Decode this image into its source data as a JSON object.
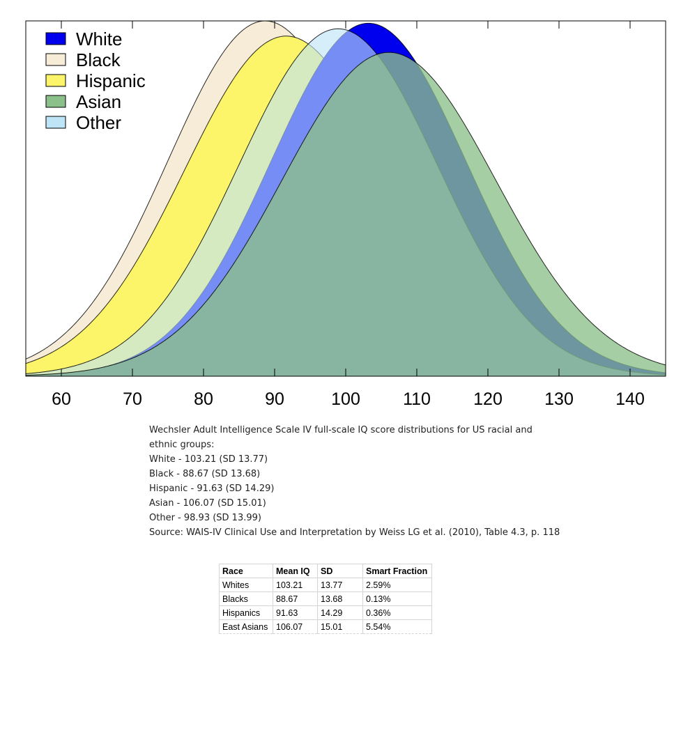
{
  "chart_data": {
    "type": "area",
    "title": "",
    "xlabel": "",
    "ylabel": "",
    "xlim": [
      55,
      145
    ],
    "xticks": [
      60,
      70,
      80,
      90,
      100,
      110,
      120,
      130,
      140
    ],
    "legend_position": "top-left",
    "series": [
      {
        "name": "White",
        "mean": 103.21,
        "sd": 13.77,
        "color": "#0000ee"
      },
      {
        "name": "Black",
        "mean": 88.67,
        "sd": 13.68,
        "color": "#f7ecd8"
      },
      {
        "name": "Hispanic",
        "mean": 91.63,
        "sd": 14.29,
        "color": "#fcf56a"
      },
      {
        "name": "Asian",
        "mean": 106.07,
        "sd": 15.01,
        "color": "#8cc08a"
      },
      {
        "name": "Other",
        "mean": 98.93,
        "sd": 13.99,
        "color": "#bde4f7"
      }
    ]
  },
  "caption": {
    "line1": "Wechsler Adult Intelligence Scale IV full-scale IQ score distributions for US racial and ethnic groups:",
    "white": "White - 103.21 (SD 13.77)",
    "black": "Black - 88.67 (SD 13.68)",
    "hispanic": "Hispanic - 91.63 (SD 14.29)",
    "asian": "Asian - 106.07 (SD 15.01)",
    "other": "Other - 98.93 (SD 13.99)",
    "source": "Source: WAIS-IV Clinical Use and Interpretation by Weiss LG et al. (2010), Table 4.3, p. 118"
  },
  "table": {
    "headers": [
      "Race",
      "Mean IQ",
      "SD",
      "Smart Fraction"
    ],
    "rows": [
      [
        "Whites",
        "103.21",
        "13.77",
        "2.59%"
      ],
      [
        "Blacks",
        "88.67",
        "13.68",
        "0.13%"
      ],
      [
        "Hispanics",
        "91.63",
        "14.29",
        "0.36%"
      ],
      [
        "East Asians",
        "106.07",
        "15.01",
        "5.54%"
      ]
    ]
  }
}
